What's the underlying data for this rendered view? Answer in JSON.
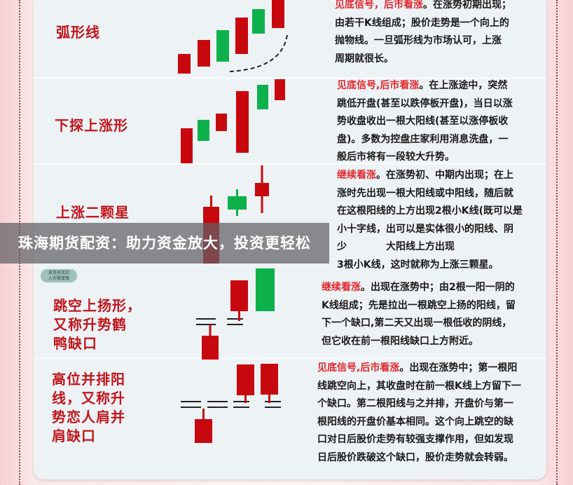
{
  "colors": {
    "bull": "#c8080f",
    "bear": "#0db14b",
    "label": "#c0161c",
    "highlight": "#e0282e"
  },
  "patterns": [
    {
      "name": "弧形线",
      "signal": "见底信号，后市看涨",
      "lines": [
        "。在涨势初期出现；",
        "由若干K线组成；股价走势是一个向上的",
        "抛物线。一旦弧形线为市场认可，上涨",
        "周期就很长。"
      ]
    },
    {
      "name": "下探上涨形",
      "signal": "见底信号,后市看涨",
      "lines": [
        "。在上涨途中，突然",
        "跳低开盘(甚至以跌停板开盘)，当日以涨",
        "势收盘收出一根大阳线(甚至以涨停板收",
        "盘)。多数为控盘庄家利用消息洗盘，一",
        "般后市将有一段较大升势。"
      ]
    },
    {
      "name": "上涨二颗星",
      "signal": "继续看涨",
      "lines": [
        "。在涨势初、中期内出现；在上",
        "涨时先出现一根大阳线或中阳线，随后就",
        "在这根阳线的上方出现2根小K线(既可以是",
        "小十字线，出可以是实体很小的阳线、阴",
        "少　　　　大阳线上方出现",
        "3根小K线，这时就称为上涨三颗星。"
      ]
    },
    {
      "name": "跳空上扬形，又称升势鹤鸭缺口",
      "signal": "继续看涨",
      "lines": [
        "。出现在涨势中；由2根一阳一阴的",
        "K线组成；先是拉出一根跳空上扬的阳线，留",
        "下一个缺口,第二天又出现一根低收的阴线，",
        "但它收在前一根阳线缺口上方附近。"
      ]
    },
    {
      "name": "高位并排阳线，又称升势恋人肩并肩缺口",
      "signal": "见底信号,后市看涨",
      "lines": [
        "。出现在涨势中；第一根阳",
        "线跳空向上，其收盘时在前一根K线上方留下一",
        "个缺口。第二根阳线与之并排，开盘价与第一",
        "根阳线的开盘价基本相同。这个向上跳空的缺",
        "口对日后股价走势有较强支撑作用，但如发现",
        "日后股价跌破这个缺口，股价走势就会转弱。"
      ]
    }
  ],
  "label_lines": [
    [
      "弧形线"
    ],
    [
      "下探上涨形"
    ],
    [
      "上涨二颗星"
    ],
    [
      "跳空上扬形，",
      "又称升势鹤",
      "鸭缺口"
    ],
    [
      "高位并排阳",
      "线，又称升",
      "势恋人肩并",
      "肩缺口"
    ]
  ],
  "badge": {
    "line1": "投资有风险",
    "line2": "入市需谨慎"
  },
  "banner": {
    "text": "珠海期货配资：助力资金放大，投资更轻松"
  }
}
